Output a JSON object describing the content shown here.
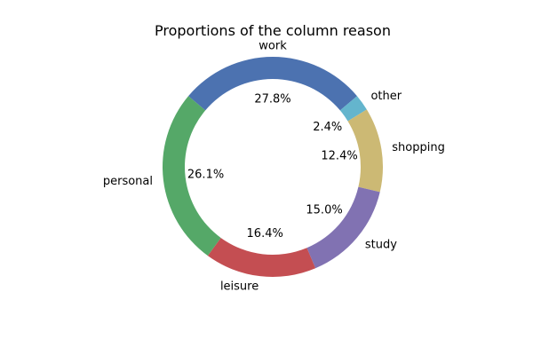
{
  "chart_data": {
    "type": "pie",
    "style": "donut",
    "title": "Proportions of the column reason",
    "categories": [
      "work",
      "other",
      "shopping",
      "study",
      "leisure",
      "personal"
    ],
    "values": [
      27.8,
      2.4,
      12.4,
      15.0,
      16.4,
      26.1
    ],
    "value_labels": [
      "27.8%",
      "2.4%",
      "12.4%",
      "15.0%",
      "16.4%",
      "26.1%"
    ],
    "colors": [
      "#4c72b0",
      "#64b5cd",
      "#ccb974",
      "#8172b2",
      "#c44e52",
      "#55a868"
    ],
    "direction": "clockwise",
    "legend": "none"
  }
}
